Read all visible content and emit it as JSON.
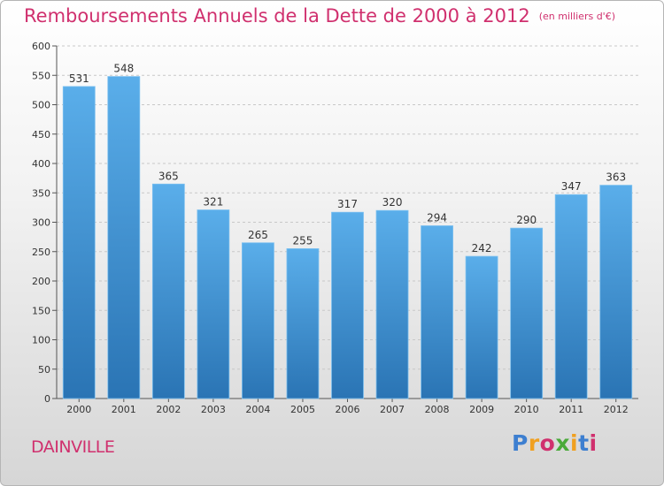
{
  "header": {
    "title": "Remboursements Annuels de la Dette de 2000 à 2012",
    "subtitle": "(en milliers d'€)"
  },
  "footer": {
    "commune": "DAINVILLE",
    "logo_text": "Proxiti",
    "logo_colors": [
      "#3d7fd0",
      "#f0a020",
      "#d0306e",
      "#4aaa3a",
      "#f0a020",
      "#3d7fd0",
      "#d0306e"
    ]
  },
  "colors": {
    "bar_top": "#5aaeea",
    "bar_bottom": "#2a74b4",
    "accent": "#d0306e"
  },
  "chart_data": {
    "type": "bar",
    "categories": [
      "2000",
      "2001",
      "2002",
      "2003",
      "2004",
      "2005",
      "2006",
      "2007",
      "2008",
      "2009",
      "2010",
      "2011",
      "2012"
    ],
    "values": [
      531,
      548,
      365,
      321,
      265,
      255,
      317,
      320,
      294,
      242,
      290,
      347,
      363
    ],
    "title": "Remboursements Annuels de la Dette de 2000 à 2012",
    "subtitle": "(en milliers d'€)",
    "xlabel": "",
    "ylabel": "",
    "ylim": [
      0,
      600
    ],
    "yticks": [
      0,
      50,
      100,
      150,
      200,
      250,
      300,
      350,
      400,
      450,
      500,
      550,
      600
    ],
    "grid": true,
    "data_labels": true
  }
}
